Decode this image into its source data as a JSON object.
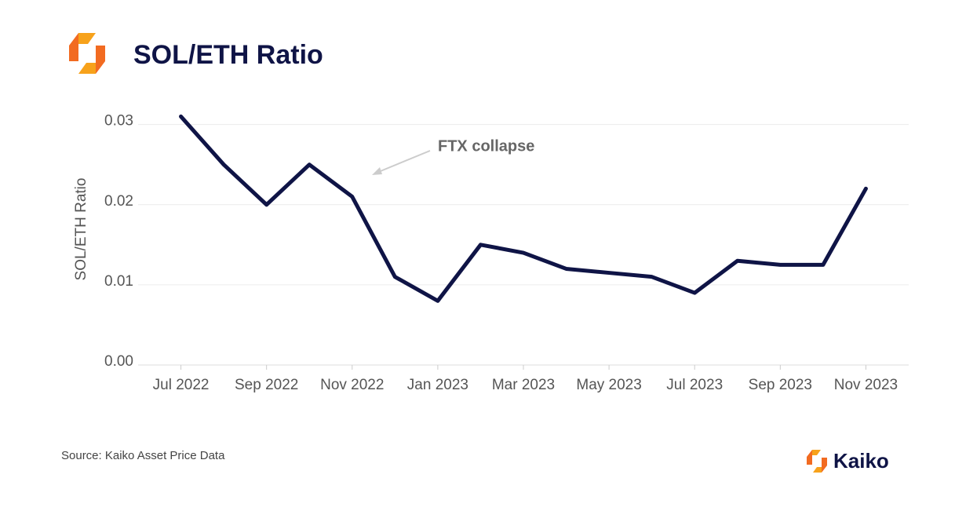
{
  "chart_data": {
    "type": "line",
    "title": "SOL/ETH Ratio",
    "y_label": "SOL/ETH Ratio",
    "annotation": "FTX collapse",
    "source": "Source: Kaiko Asset Price Data",
    "brand": "Kaiko",
    "x": [
      "2022-07",
      "2022-08",
      "2022-09",
      "2022-10",
      "2022-11",
      "2022-12",
      "2023-01",
      "2023-02",
      "2023-03",
      "2023-04",
      "2023-05",
      "2023-06",
      "2023-07",
      "2023-08",
      "2023-09",
      "2023-10",
      "2023-11"
    ],
    "series": [
      {
        "name": "SOL/ETH Ratio",
        "color": "#0f1446",
        "values": [
          0.031,
          0.025,
          0.02,
          0.025,
          0.021,
          0.011,
          0.008,
          0.015,
          0.014,
          0.012,
          0.0115,
          0.011,
          0.009,
          0.013,
          0.0125,
          0.0125,
          0.022
        ]
      }
    ],
    "xlim": [
      "2022-06",
      "2023-12"
    ],
    "xticks": [
      {
        "value": "2022-07",
        "label": "Jul 2022"
      },
      {
        "value": "2022-09",
        "label": "Sep 2022"
      },
      {
        "value": "2022-11",
        "label": "Nov 2022"
      },
      {
        "value": "2023-01",
        "label": "Jan 2023"
      },
      {
        "value": "2023-03",
        "label": "Mar 2023"
      },
      {
        "value": "2023-05",
        "label": "May 2023"
      },
      {
        "value": "2023-07",
        "label": "Jul 2023"
      },
      {
        "value": "2023-09",
        "label": "Sep 2023"
      },
      {
        "value": "2023-11",
        "label": "Nov 2023"
      }
    ],
    "ylim": [
      0,
      0.033
    ],
    "yticks": [
      {
        "value": 0,
        "label": "0.00"
      },
      0.01,
      0.02,
      0.03
    ],
    "grid": true
  }
}
